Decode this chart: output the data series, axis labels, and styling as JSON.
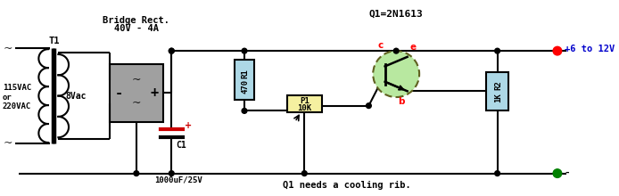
{
  "bg_color": "#ffffff",
  "line_color": "#000000",
  "bridge_label1": "Bridge Rect.",
  "bridge_label2": "40V - 4A",
  "transformer_label": "T1",
  "vac_label": "8Vac",
  "input_label": "115VAC\nor\n220VAC",
  "q1_label": "Q1=2N1613",
  "r1_label": "470",
  "r1_tag": "R1",
  "r2_label": "1K",
  "r2_tag": "R2",
  "p1_label": "10K",
  "p1_tag": "P1",
  "c1_label": "C1",
  "c1_sublabel": "1000uF/25V",
  "vout_label": "+6 to 12V",
  "cooling_label": "Q1 needs a cooling rib.",
  "c_label": "c",
  "e_label": "e",
  "b_label": "b",
  "minus_label": "-",
  "tilde": "~"
}
